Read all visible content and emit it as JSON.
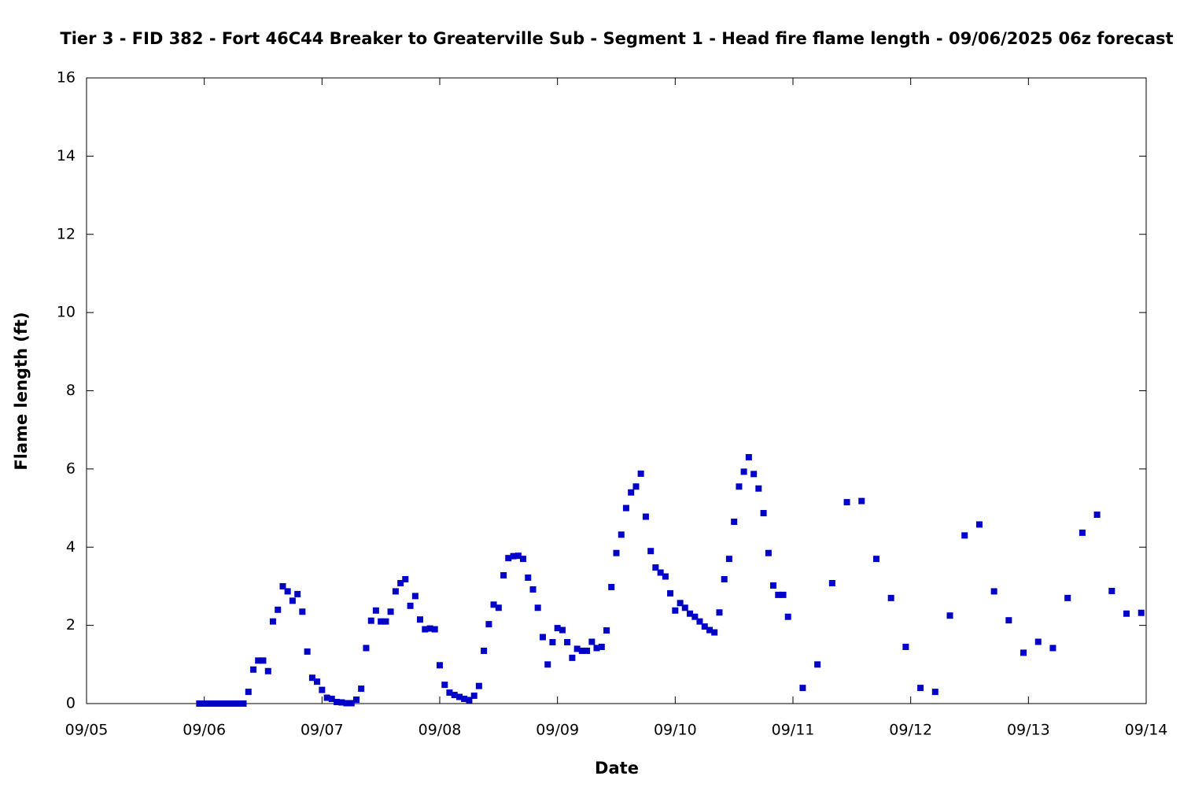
{
  "chart_data": {
    "type": "scatter",
    "title": "Tier 3 - FID 382 - Fort 46C44 Breaker to Greaterville Sub - Segment 1 - Head fire flame length - 09/06/2025 06z forecast",
    "x_label": "Date",
    "y_label": "Flame length (ft)",
    "xlim": [
      5,
      14
    ],
    "xticks": [
      {
        "value": 5,
        "label": "09/05"
      },
      {
        "value": 6,
        "label": "09/06"
      },
      {
        "value": 7,
        "label": "09/07"
      },
      {
        "value": 8,
        "label": "09/08"
      },
      {
        "value": 9,
        "label": "09/09"
      },
      {
        "value": 10,
        "label": "09/10"
      },
      {
        "value": 11,
        "label": "09/11"
      },
      {
        "value": 12,
        "label": "09/12"
      },
      {
        "value": 13,
        "label": "09/13"
      },
      {
        "value": 14,
        "label": "09/14"
      }
    ],
    "ylim": [
      0,
      16
    ],
    "yticks": [
      0,
      2,
      4,
      6,
      8,
      10,
      12,
      14,
      16
    ],
    "series": [
      {
        "color": "#0000c8",
        "x": [
          5.958,
          6,
          6.042,
          6.083,
          6.125,
          6.167,
          6.208,
          6.25,
          6.292,
          6.333,
          6.375,
          6.417,
          6.458,
          6.5,
          6.542,
          6.583,
          6.625,
          6.667,
          6.708,
          6.75,
          6.792,
          6.833,
          6.875,
          6.917,
          6.958,
          7,
          7.042,
          7.083,
          7.125,
          7.167,
          7.208,
          7.25,
          7.292,
          7.333,
          7.375,
          7.417,
          7.458,
          7.5,
          7.542,
          7.583,
          7.625,
          7.667,
          7.708,
          7.75,
          7.792,
          7.833,
          7.875,
          7.917,
          7.958,
          8,
          8.042,
          8.083,
          8.125,
          8.167,
          8.208,
          8.25,
          8.292,
          8.333,
          8.375,
          8.417,
          8.458,
          8.5,
          8.542,
          8.583,
          8.625,
          8.667,
          8.708,
          8.75,
          8.792,
          8.833,
          8.875,
          8.917,
          8.958,
          9,
          9.042,
          9.083,
          9.125,
          9.167,
          9.208,
          9.25,
          9.292,
          9.333,
          9.375,
          9.417,
          9.458,
          9.5,
          9.542,
          9.583,
          9.625,
          9.667,
          9.708,
          9.75,
          9.792,
          9.833,
          9.875,
          9.917,
          9.958,
          10,
          10.042,
          10.083,
          10.125,
          10.167,
          10.208,
          10.25,
          10.292,
          10.333,
          10.375,
          10.417,
          10.458,
          10.5,
          10.542,
          10.583,
          10.625,
          10.667,
          10.708,
          10.75,
          10.792,
          10.833,
          10.875,
          10.917,
          10.958,
          11.083,
          11.208,
          11.333,
          11.458,
          11.583,
          11.708,
          11.833,
          11.958,
          12.083,
          12.208,
          12.333,
          12.458,
          12.583,
          12.708,
          12.833,
          12.958,
          13.083,
          13.208,
          13.333,
          13.458,
          13.583,
          13.708,
          13.833,
          13.958
        ],
        "values": [
          0,
          0,
          0,
          0,
          0,
          0,
          0,
          0,
          0,
          0,
          0.3,
          0.87,
          1.1,
          1.1,
          0.83,
          2.1,
          2.4,
          3.0,
          2.87,
          2.63,
          2.8,
          2.35,
          1.33,
          0.66,
          0.56,
          0.35,
          0.15,
          0.12,
          0.04,
          0.03,
          0.01,
          0.01,
          0.1,
          0.38,
          1.42,
          2.12,
          2.38,
          2.1,
          2.1,
          2.35,
          2.87,
          3.08,
          3.18,
          2.5,
          2.75,
          2.15,
          1.9,
          1.92,
          1.9,
          0.98,
          0.48,
          0.28,
          0.22,
          0.17,
          0.12,
          0.09,
          0.2,
          0.45,
          1.35,
          2.03,
          2.53,
          2.45,
          3.28,
          3.72,
          3.77,
          3.78,
          3.7,
          3.22,
          2.92,
          2.45,
          1.7,
          1.0,
          1.57,
          1.93,
          1.88,
          1.57,
          1.17,
          1.4,
          1.35,
          1.35,
          1.58,
          1.42,
          1.45,
          1.87,
          2.98,
          3.85,
          4.32,
          5.0,
          5.4,
          5.55,
          5.88,
          4.78,
          3.9,
          3.48,
          3.35,
          3.25,
          2.82,
          2.38,
          2.57,
          2.45,
          2.3,
          2.22,
          2.1,
          1.97,
          1.88,
          1.82,
          2.33,
          3.18,
          3.7,
          4.65,
          5.55,
          5.93,
          6.3,
          5.87,
          5.5,
          4.87,
          3.85,
          3.02,
          2.78,
          2.78,
          2.22,
          0.4,
          1.0,
          3.08,
          5.15,
          5.18,
          3.7,
          2.7,
          1.45,
          0.4,
          0.3,
          2.25,
          4.3,
          4.58,
          2.87,
          2.13,
          1.3,
          1.58,
          1.42,
          2.7,
          4.37,
          4.83,
          2.88,
          2.3,
          2.32
        ]
      }
    ]
  }
}
